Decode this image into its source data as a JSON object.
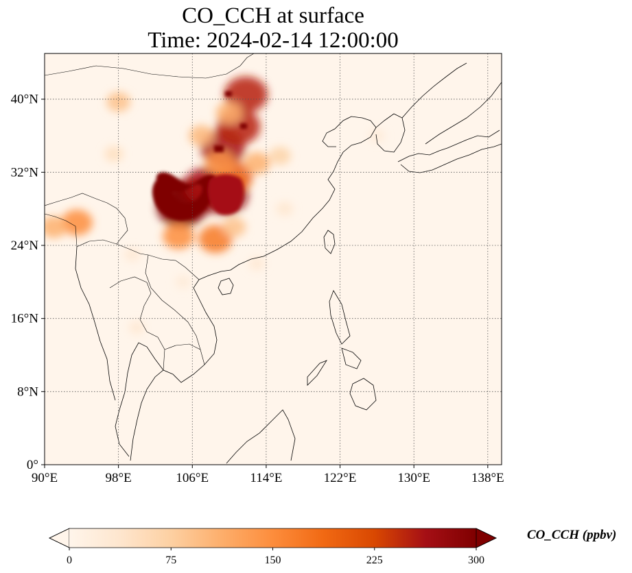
{
  "title": {
    "line1": "CO_CCH at surface",
    "line2": "Time: 2024-02-14 12:00:00"
  },
  "map": {
    "projection": "PlateCarree",
    "lon_range": [
      90,
      139.5
    ],
    "lat_range": [
      0,
      45
    ],
    "lon_ticks": [
      {
        "value": 90,
        "label": "90°E"
      },
      {
        "value": 98,
        "label": "98°E"
      },
      {
        "value": 106,
        "label": "106°E"
      },
      {
        "value": 114,
        "label": "114°E"
      },
      {
        "value": 122,
        "label": "122°E"
      },
      {
        "value": 130,
        "label": "130°E"
      },
      {
        "value": 138,
        "label": "138°E"
      }
    ],
    "lat_ticks": [
      {
        "value": 0,
        "label": "0°"
      },
      {
        "value": 8,
        "label": "8°N"
      },
      {
        "value": 16,
        "label": "16°N"
      },
      {
        "value": 24,
        "label": "24°N"
      },
      {
        "value": 32,
        "label": "32°N"
      },
      {
        "value": 40,
        "label": "40°N"
      }
    ],
    "gridlines": true,
    "background_color": "#fff5eb",
    "plumes": [
      {
        "lon": 105.7,
        "lat": 29.0,
        "value": 300
      },
      {
        "lon": 104.8,
        "lat": 28.2,
        "value": 300
      },
      {
        "lon": 109.5,
        "lat": 29.5,
        "value": 280
      },
      {
        "lon": 107.5,
        "lat": 30.5,
        "value": 260
      },
      {
        "lon": 110.5,
        "lat": 31.5,
        "value": 200
      },
      {
        "lon": 109.3,
        "lat": 34.7,
        "value": 260
      },
      {
        "lon": 111.0,
        "lat": 37.0,
        "value": 250
      },
      {
        "lon": 111.8,
        "lat": 40.5,
        "value": 250
      },
      {
        "lon": 109.0,
        "lat": 33.0,
        "value": 140
      },
      {
        "lon": 107.0,
        "lat": 36.0,
        "value": 100
      },
      {
        "lon": 113.0,
        "lat": 33.0,
        "value": 110
      },
      {
        "lon": 115.5,
        "lat": 33.8,
        "value": 70
      },
      {
        "lon": 110.0,
        "lat": 38.5,
        "value": 110
      },
      {
        "lon": 93.5,
        "lat": 26.5,
        "value": 150
      },
      {
        "lon": 91.0,
        "lat": 26.0,
        "value": 110
      },
      {
        "lon": 104.5,
        "lat": 25.0,
        "value": 150
      },
      {
        "lon": 108.5,
        "lat": 24.7,
        "value": 170
      },
      {
        "lon": 110.5,
        "lat": 26.0,
        "value": 90
      },
      {
        "lon": 97.5,
        "lat": 34.0,
        "value": 50
      },
      {
        "lon": 98.0,
        "lat": 39.7,
        "value": 90
      },
      {
        "lon": 99.5,
        "lat": 23.0,
        "value": 30
      },
      {
        "lon": 100.0,
        "lat": 15.0,
        "value": 30
      },
      {
        "lon": 105.0,
        "lat": 20.0,
        "value": 25
      },
      {
        "lon": 126.0,
        "lat": 36.0,
        "value": 25
      },
      {
        "lon": 116.0,
        "lat": 28.0,
        "value": 35
      },
      {
        "lon": 113.0,
        "lat": 22.0,
        "value": 30
      }
    ]
  },
  "colorbar": {
    "label": "CO_CCH (ppbv)",
    "min": 0,
    "max": 300,
    "extend": "both",
    "ticks": [
      {
        "value": 0,
        "label": "0"
      },
      {
        "value": 75,
        "label": "75"
      },
      {
        "value": 150,
        "label": "150"
      },
      {
        "value": 225,
        "label": "225"
      },
      {
        "value": 300,
        "label": "300"
      }
    ],
    "colormap": "OrRd",
    "stops": [
      "#fff5eb",
      "#fee6ce",
      "#fdd0a2",
      "#fdae6b",
      "#fd8d3c",
      "#f16913",
      "#d94801",
      "#a50f15",
      "#7f0000"
    ]
  }
}
